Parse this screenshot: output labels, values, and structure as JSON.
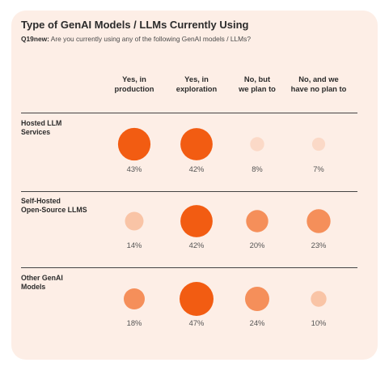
{
  "chart_data": {
    "type": "bubble-matrix",
    "title": "Type of GenAI Models / LLMs Currently Using",
    "question_id": "Q19new:",
    "question_text": "Are you currently using any of the following GenAI models / LLMs?",
    "columns": [
      [
        "Yes, in",
        "production"
      ],
      [
        "Yes, in",
        "exploration"
      ],
      [
        "No, but",
        "we plan to"
      ],
      [
        "No, and we",
        "have no plan to"
      ]
    ],
    "rows": [
      {
        "label": [
          "Hosted LLM",
          "Services"
        ],
        "values": [
          43,
          42,
          8,
          7
        ]
      },
      {
        "label": [
          "Self-Hosted",
          "Open-Source LLMS"
        ],
        "values": [
          14,
          42,
          20,
          23
        ]
      },
      {
        "label": [
          "Other GenAI",
          "Models"
        ],
        "values": [
          18,
          47,
          24,
          10
        ]
      }
    ],
    "value_suffix": "%",
    "colors": {
      "high": "#f25c12",
      "mid": "#f58f5a",
      "low": "#f9c4a6",
      "lowest": "#fbd9c7",
      "label_text": "#555555"
    }
  }
}
